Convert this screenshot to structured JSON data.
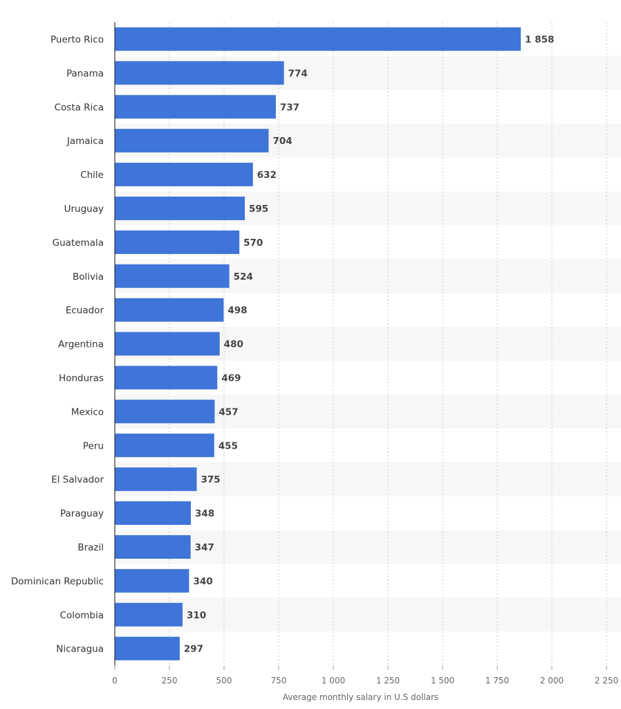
{
  "chart_data": {
    "type": "bar",
    "orientation": "horizontal",
    "title": "",
    "xlabel": "Average monthly salary in U.S dollars",
    "ylabel": "",
    "xlim": [
      0,
      2250
    ],
    "xticks": [
      0,
      250,
      500,
      750,
      1000,
      1250,
      1500,
      1750,
      2000,
      2250
    ],
    "xtick_labels": [
      "0",
      "250",
      "500",
      "750",
      "1 000",
      "1 250",
      "1 500",
      "1 750",
      "2 000",
      "2 250"
    ],
    "grid": "vertical dotted",
    "categories": [
      "Puerto Rico",
      "Panama",
      "Costa Rica",
      "Jamaica",
      "Chile",
      "Uruguay",
      "Guatemala",
      "Bolivia",
      "Ecuador",
      "Argentina",
      "Honduras",
      "Mexico",
      "Peru",
      "El Salvador",
      "Paraguay",
      "Brazil",
      "Dominican Republic",
      "Colombia",
      "Nicaragua"
    ],
    "values": [
      1858,
      774,
      737,
      704,
      632,
      595,
      570,
      524,
      498,
      480,
      469,
      457,
      455,
      375,
      348,
      347,
      340,
      310,
      297
    ],
    "value_labels": [
      "1 858",
      "774",
      "737",
      "704",
      "632",
      "595",
      "570",
      "524",
      "498",
      "480",
      "469",
      "457",
      "455",
      "375",
      "348",
      "347",
      "340",
      "310",
      "297"
    ],
    "colors": {
      "bar": "#3f74d9",
      "stripe": "#f7f7f7",
      "grid": "#c8c8c8",
      "axis": "#333333"
    }
  }
}
